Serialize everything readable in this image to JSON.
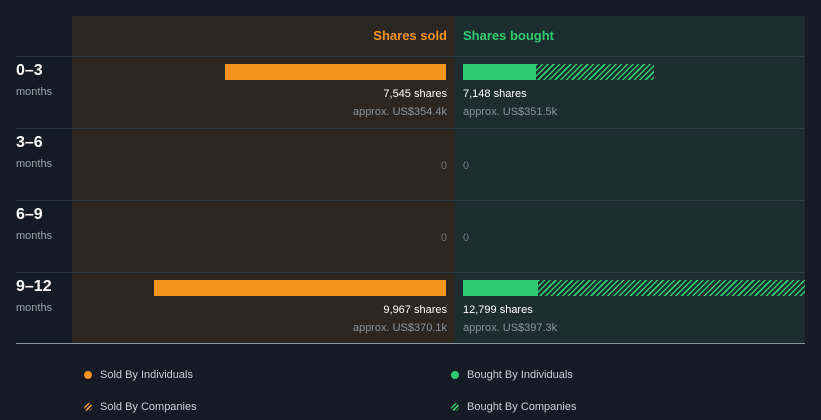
{
  "chart_data": {
    "type": "bar",
    "title": "",
    "columns": {
      "sold": "Shares sold",
      "bought": "Shares bought"
    },
    "rows": [
      {
        "range": "0–3",
        "unit": "months",
        "sold": {
          "individuals": 7545,
          "companies": 0,
          "shares_label": "7,545 shares",
          "value_label": "approx. US$354.4k"
        },
        "bought": {
          "individuals": 2750,
          "companies": 4398,
          "shares_label": "7,148 shares",
          "value_label": "approx. US$351.5k"
        }
      },
      {
        "range": "3–6",
        "unit": "months",
        "sold": {
          "individuals": 0,
          "companies": 0,
          "zero_label": "0"
        },
        "bought": {
          "individuals": 0,
          "companies": 0,
          "zero_label": "0"
        }
      },
      {
        "range": "6–9",
        "unit": "months",
        "sold": {
          "individuals": 0,
          "companies": 0,
          "zero_label": "0"
        },
        "bought": {
          "individuals": 0,
          "companies": 0,
          "zero_label": "0"
        }
      },
      {
        "range": "9–12",
        "unit": "months",
        "sold": {
          "individuals": 9967,
          "companies": 0,
          "shares_label": "9,967 shares",
          "value_label": "approx. US$370.1k"
        },
        "bought": {
          "individuals": 2800,
          "companies": 9999,
          "shares_label": "12,799 shares",
          "value_label": "approx. US$397.3k"
        }
      }
    ],
    "max_sold": 12800,
    "max_bought": 12799,
    "legend": [
      {
        "label": "Sold By Individuals",
        "color": "#f7941d",
        "style": "solid"
      },
      {
        "label": "Bought By Individuals",
        "color": "#2ecc71",
        "style": "solid"
      },
      {
        "label": "Sold By Companies",
        "color": "#f7941d",
        "style": "hatched"
      },
      {
        "label": "Bought By Companies",
        "color": "#2ecc71",
        "style": "hatched"
      }
    ]
  }
}
